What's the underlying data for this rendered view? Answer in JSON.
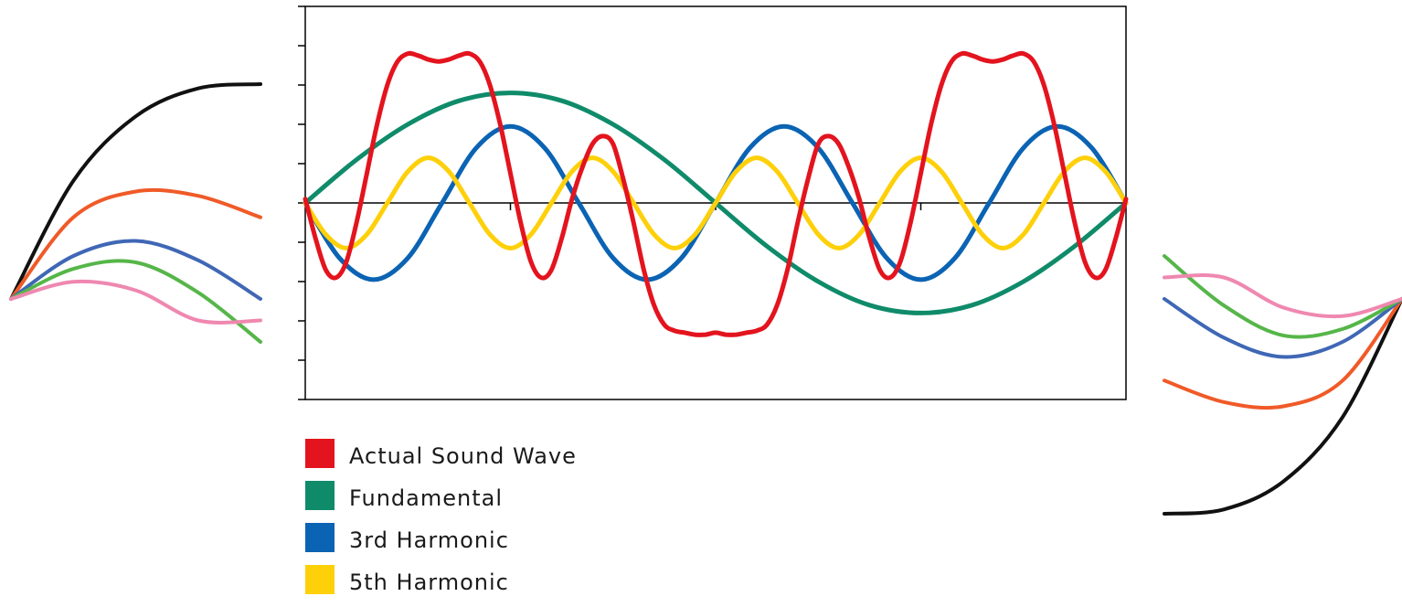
{
  "chart_data": [
    {
      "type": "line",
      "title": "",
      "xlabel": "",
      "ylabel": "",
      "xlim": [
        0,
        1
      ],
      "ylim": [
        -1.0,
        1.0
      ],
      "grid": false,
      "legend_placement": "below",
      "series": [
        {
          "name": "Actual Sound Wave",
          "color": "#e3141e",
          "x": [
            0,
            0.0125,
            0.025,
            0.0375,
            0.05,
            0.0625,
            0.075,
            0.0875,
            0.1,
            0.1125,
            0.125,
            0.1375,
            0.15,
            0.1625,
            0.175,
            0.1875,
            0.2,
            0.2125,
            0.225,
            0.2375,
            0.25,
            0.2625,
            0.275,
            0.2875,
            0.3,
            0.3125,
            0.325,
            0.3375,
            0.35,
            0.3625,
            0.375,
            0.3875,
            0.4,
            0.4125,
            0.425,
            0.4375,
            0.45,
            0.4625,
            0.475,
            0.4875,
            0.5,
            0.5125,
            0.525,
            0.5375,
            0.55,
            0.5625,
            0.575,
            0.5875,
            0.6,
            0.6125,
            0.625,
            0.6375,
            0.65,
            0.6625,
            0.675,
            0.6875,
            0.7,
            0.7125,
            0.725,
            0.7375,
            0.75,
            0.7625,
            0.775,
            0.7875,
            0.8,
            0.8125,
            0.825,
            0.8375,
            0.85,
            0.8625,
            0.875,
            0.8875,
            0.9,
            0.9125,
            0.925,
            0.9375,
            0.95,
            0.9625,
            0.975,
            0.9875,
            1.0
          ],
          "values": [
            0.02,
            -0.18,
            -0.34,
            -0.38,
            -0.3,
            -0.1,
            0.15,
            0.4,
            0.6,
            0.72,
            0.76,
            0.75,
            0.73,
            0.72,
            0.73,
            0.75,
            0.76,
            0.72,
            0.6,
            0.4,
            0.15,
            -0.1,
            -0.3,
            -0.38,
            -0.34,
            -0.18,
            0.02,
            0.18,
            0.3,
            0.34,
            0.3,
            0.12,
            -0.1,
            -0.34,
            -0.52,
            -0.62,
            -0.65,
            -0.66,
            -0.67,
            -0.67,
            -0.66,
            -0.67,
            -0.67,
            -0.66,
            -0.65,
            -0.62,
            -0.52,
            -0.34,
            -0.1,
            0.12,
            0.3,
            0.34,
            0.3,
            0.18,
            0.02,
            -0.18,
            -0.34,
            -0.38,
            -0.3,
            -0.1,
            0.15,
            0.4,
            0.6,
            0.72,
            0.76,
            0.75,
            0.73,
            0.72,
            0.73,
            0.75,
            0.76,
            0.72,
            0.6,
            0.4,
            0.15,
            -0.1,
            -0.3,
            -0.38,
            -0.34,
            -0.18,
            0.02
          ]
        },
        {
          "name": "Fundamental",
          "color": "#0f8b6a",
          "x": [
            0,
            0.0625,
            0.125,
            0.1875,
            0.25,
            0.3125,
            0.375,
            0.4375,
            0.5,
            0.5625,
            0.625,
            0.6875,
            0.75,
            0.8125,
            0.875,
            0.9375,
            1.0
          ],
          "values": [
            0,
            0.22,
            0.4,
            0.52,
            0.56,
            0.52,
            0.4,
            0.22,
            0,
            -0.22,
            -0.4,
            -0.52,
            -0.56,
            -0.52,
            -0.4,
            -0.22,
            0
          ]
        },
        {
          "name": "3rd Harmonic",
          "color": "#0b63b3",
          "x": [
            0,
            0.0417,
            0.0833,
            0.125,
            0.1667,
            0.2083,
            0.25,
            0.2917,
            0.3333,
            0.375,
            0.4167,
            0.4583,
            0.5,
            0.5417,
            0.5833,
            0.625,
            0.6667,
            0.7083,
            0.75,
            0.7917,
            0.8333,
            0.875,
            0.9167,
            0.9583,
            1.0
          ],
          "values": [
            0,
            -0.28,
            -0.39,
            -0.28,
            0,
            0.28,
            0.39,
            0.28,
            0,
            -0.28,
            -0.39,
            -0.28,
            0,
            0.28,
            0.39,
            0.28,
            0,
            -0.28,
            -0.39,
            -0.28,
            0,
            0.28,
            0.39,
            0.28,
            0
          ]
        },
        {
          "name": "5th Harmonic",
          "color": "#fed00a",
          "x": [
            0,
            0.025,
            0.05,
            0.075,
            0.1,
            0.125,
            0.15,
            0.175,
            0.2,
            0.225,
            0.25,
            0.275,
            0.3,
            0.325,
            0.35,
            0.375,
            0.4,
            0.425,
            0.45,
            0.475,
            0.5,
            0.525,
            0.55,
            0.575,
            0.6,
            0.625,
            0.65,
            0.675,
            0.7,
            0.725,
            0.75,
            0.775,
            0.8,
            0.825,
            0.85,
            0.875,
            0.9,
            0.925,
            0.95,
            0.975,
            1.0
          ],
          "values": [
            0,
            -0.16,
            -0.23,
            -0.16,
            0,
            0.16,
            0.23,
            0.16,
            0,
            -0.16,
            -0.23,
            -0.16,
            0,
            0.16,
            0.23,
            0.16,
            0,
            -0.16,
            -0.23,
            -0.16,
            0,
            0.16,
            0.23,
            0.16,
            0,
            -0.16,
            -0.23,
            -0.16,
            0,
            0.16,
            0.23,
            0.16,
            0,
            -0.16,
            -0.23,
            -0.16,
            0,
            0.16,
            0.23,
            0.16,
            0
          ]
        }
      ]
    },
    {
      "type": "line",
      "title": "",
      "xlabel": "",
      "ylabel": "",
      "xlim": [
        0,
        1
      ],
      "ylim": [
        -1,
        1
      ],
      "grid": false,
      "series": [
        {
          "color": "#111111",
          "x": [
            0,
            0.25,
            0.5,
            0.75,
            1.0
          ],
          "values": [
            0,
            0.55,
            0.85,
            0.98,
            1.0
          ]
        },
        {
          "color": "#f05a28",
          "x": [
            0,
            0.25,
            0.5,
            0.75,
            1.0
          ],
          "values": [
            0,
            0.38,
            0.5,
            0.48,
            0.38
          ]
        },
        {
          "color": "#3f67b5",
          "x": [
            0,
            0.25,
            0.5,
            0.75,
            1.0
          ],
          "values": [
            0,
            0.2,
            0.27,
            0.18,
            0.0
          ]
        },
        {
          "color": "#56b649",
          "x": [
            0,
            0.25,
            0.5,
            0.75,
            1.0
          ],
          "values": [
            0,
            0.14,
            0.17,
            0.03,
            -0.2
          ]
        },
        {
          "color": "#ef88b0",
          "x": [
            0,
            0.25,
            0.5,
            0.75,
            1.0
          ],
          "values": [
            0,
            0.08,
            0.04,
            -0.1,
            -0.1
          ]
        }
      ]
    },
    {
      "type": "line",
      "title": "",
      "xlabel": "",
      "ylabel": "",
      "xlim": [
        0,
        1
      ],
      "ylim": [
        -1,
        1
      ],
      "grid": false,
      "series": [
        {
          "color": "#111111",
          "x": [
            0,
            0.25,
            0.5,
            0.75,
            1.0
          ],
          "values": [
            -1.0,
            -0.98,
            -0.85,
            -0.55,
            0
          ]
        },
        {
          "color": "#f05a28",
          "x": [
            0,
            0.25,
            0.5,
            0.75,
            1.0
          ],
          "values": [
            -0.38,
            -0.48,
            -0.5,
            -0.38,
            0
          ]
        },
        {
          "color": "#3f67b5",
          "x": [
            0,
            0.25,
            0.5,
            0.75,
            1.0
          ],
          "values": [
            0.0,
            -0.18,
            -0.27,
            -0.2,
            0
          ]
        },
        {
          "color": "#56b649",
          "x": [
            0,
            0.25,
            0.5,
            0.75,
            1.0
          ],
          "values": [
            0.2,
            -0.03,
            -0.17,
            -0.14,
            0
          ]
        },
        {
          "color": "#ef88b0",
          "x": [
            0,
            0.25,
            0.5,
            0.75,
            1.0
          ],
          "values": [
            0.1,
            0.1,
            -0.04,
            -0.08,
            0
          ]
        }
      ]
    }
  ]
}
